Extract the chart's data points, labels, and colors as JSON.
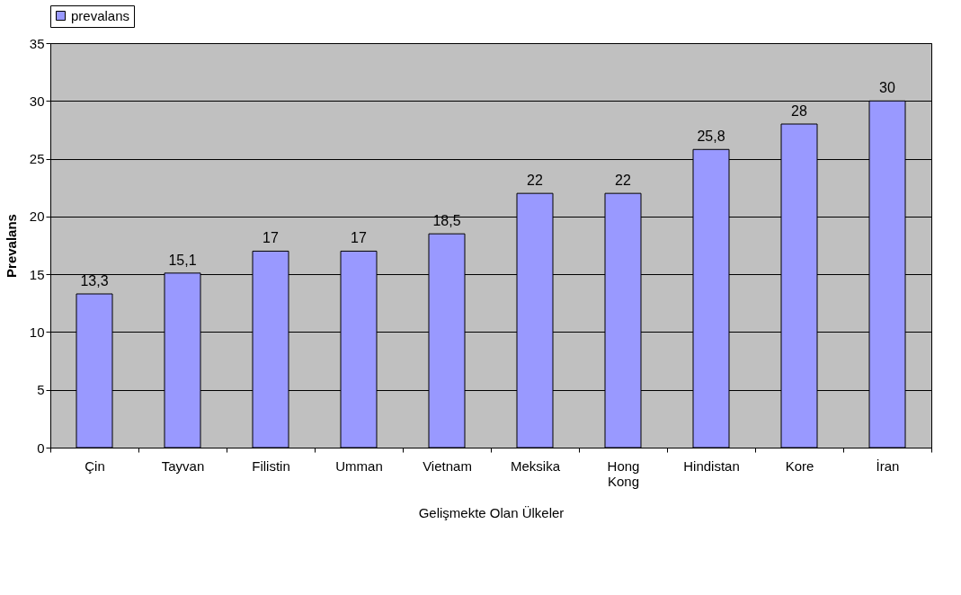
{
  "chart_data": {
    "type": "bar",
    "xlabel": "Gelişmekte Olan Ülkeler",
    "ylabel": "Prevalans",
    "categories": [
      "Çin",
      "Tayvan",
      "Filistin",
      "Umman",
      "Vietnam",
      "Meksika",
      "Hong Kong",
      "Hindistan",
      "Kore",
      "İran"
    ],
    "series": [
      {
        "name": "prevalans",
        "color": "#9999ff",
        "values": [
          13.3,
          15.1,
          17,
          17,
          18.5,
          22,
          22,
          25.8,
          28,
          30
        ],
        "value_labels": [
          "13,3",
          "15,1",
          "17",
          "17",
          "18,5",
          "22",
          "22",
          "25,8",
          "28",
          "30"
        ]
      }
    ],
    "ylim": [
      0,
      35
    ],
    "yticks": [
      0,
      5,
      10,
      15,
      20,
      25,
      30,
      35
    ],
    "grid": "y",
    "legend": "top"
  }
}
